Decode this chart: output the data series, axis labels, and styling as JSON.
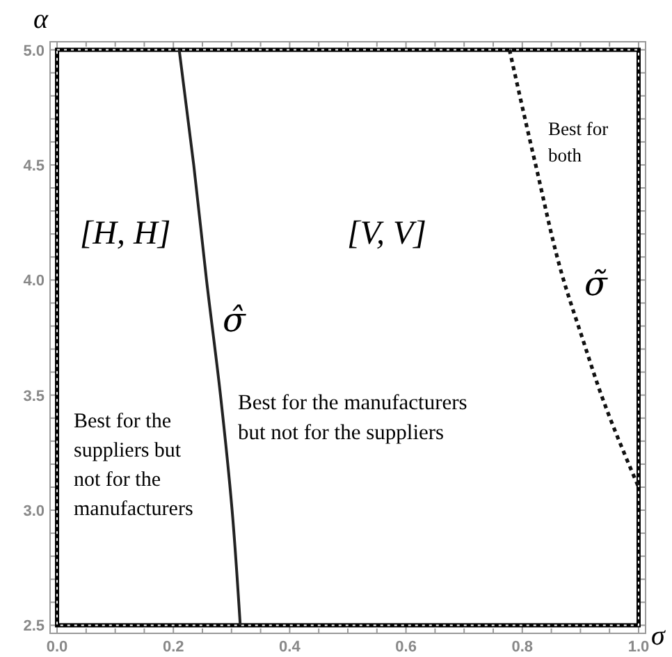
{
  "chart_data": {
    "type": "line",
    "xlabel": "σ",
    "ylabel": "α",
    "xlim": [
      -0.012,
      1.012
    ],
    "ylim": [
      2.465,
      5.035
    ],
    "xticks": [
      {
        "value": 0,
        "label": "0.0"
      },
      {
        "value": 0.05,
        "label": null
      },
      {
        "value": 0.1,
        "label": null
      },
      {
        "value": 0.15,
        "label": null
      },
      {
        "value": 0.2,
        "label": "0.2"
      },
      {
        "value": 0.25,
        "label": null
      },
      {
        "value": 0.3,
        "label": null
      },
      {
        "value": 0.35,
        "label": null
      },
      {
        "value": 0.4,
        "label": "0.4"
      },
      {
        "value": 0.45,
        "label": null
      },
      {
        "value": 0.5,
        "label": null
      },
      {
        "value": 0.55,
        "label": null
      },
      {
        "value": 0.6,
        "label": "0.6"
      },
      {
        "value": 0.65,
        "label": null
      },
      {
        "value": 0.7,
        "label": null
      },
      {
        "value": 0.75,
        "label": null
      },
      {
        "value": 0.8,
        "label": "0.8"
      },
      {
        "value": 0.85,
        "label": null
      },
      {
        "value": 0.9,
        "label": null
      },
      {
        "value": 0.95,
        "label": null
      },
      {
        "value": 1,
        "label": "1.0"
      }
    ],
    "yticks": [
      2.5,
      {
        "value": 2.6,
        "label": null
      },
      {
        "value": 2.7,
        "label": null
      },
      {
        "value": 2.8,
        "label": null
      },
      {
        "value": 2.9,
        "label": null
      },
      {
        "value": 3,
        "label": "3.0"
      },
      {
        "value": 3.1,
        "label": null
      },
      {
        "value": 3.2,
        "label": null
      },
      {
        "value": 3.3,
        "label": null
      },
      {
        "value": 3.4,
        "label": null
      },
      3.5,
      {
        "value": 3.6,
        "label": null
      },
      {
        "value": 3.7,
        "label": null
      },
      {
        "value": 3.8,
        "label": null
      },
      {
        "value": 3.9,
        "label": null
      },
      {
        "value": 4,
        "label": "4.0"
      },
      {
        "value": 4.1,
        "label": null
      },
      {
        "value": 4.2,
        "label": null
      },
      {
        "value": 4.3,
        "label": null
      },
      {
        "value": 4.4,
        "label": null
      },
      4.5,
      {
        "value": 4.6,
        "label": null
      },
      {
        "value": 4.7,
        "label": null
      },
      {
        "value": 4.8,
        "label": null
      },
      {
        "value": 4.9,
        "label": null
      },
      {
        "value": 5,
        "label": "5.0"
      }
    ],
    "grid": false,
    "marker": "none",
    "series": [
      {
        "name": "σ̂",
        "color": "#222222",
        "line_style": "solid",
        "x": [
          0.21,
          0.235,
          0.257,
          0.281,
          0.301,
          0.315
        ],
        "values": [
          5,
          4.5,
          4,
          3.5,
          3,
          2.5
        ]
      },
      {
        "name": "σ̃",
        "color": "#111111",
        "line_style": "dotted",
        "x": [
          0.778,
          0.823,
          0.871,
          0.903,
          0.936,
          1.0
        ],
        "values": [
          5,
          4.5,
          4,
          3.75,
          3.5,
          3.1
        ]
      }
    ],
    "annotations": [
      "[H, H]",
      "[V, V]",
      "Best for\nboth",
      "Best for the manufacturers\nbut not for the suppliers",
      "Best for the\nsuppliers but\nnot for the\nmanufacturers"
    ]
  }
}
